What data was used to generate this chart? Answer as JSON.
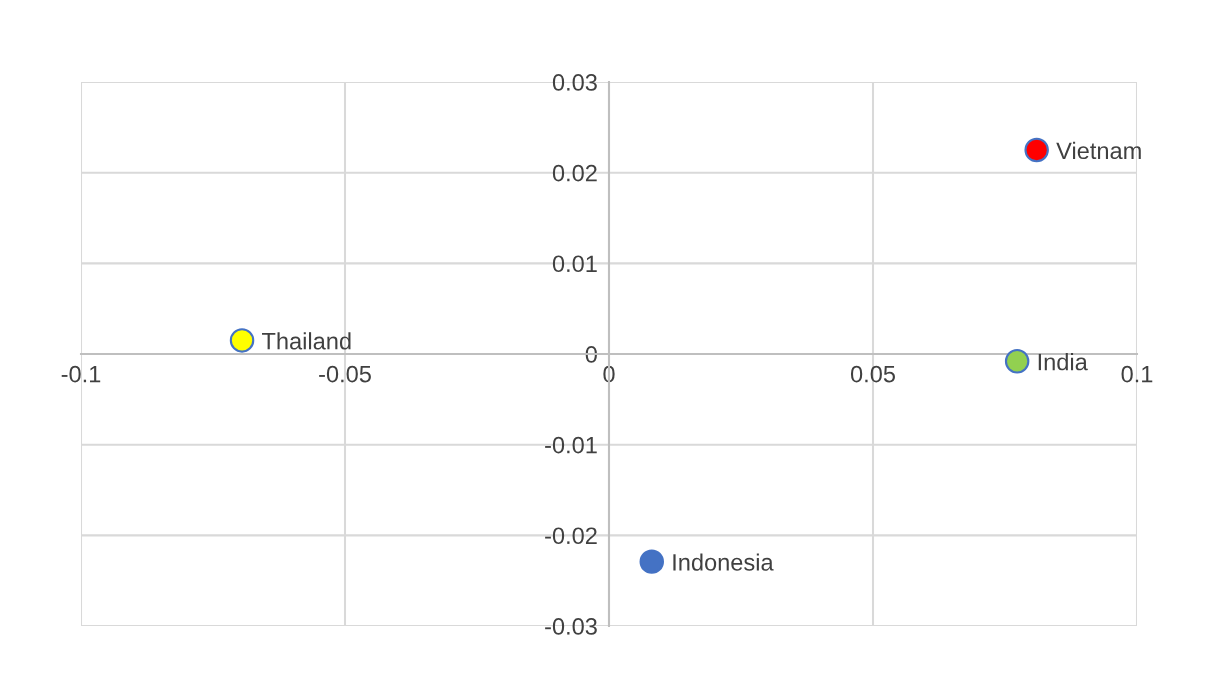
{
  "chart_data": {
    "type": "scatter",
    "xlim": [
      -0.1,
      0.1
    ],
    "ylim": [
      -0.03,
      0.03
    ],
    "xticks": [
      -0.1,
      -0.05,
      0,
      0.05,
      0.1
    ],
    "yticks": [
      -0.03,
      -0.02,
      -0.01,
      0,
      0.01,
      0.02,
      0.03
    ],
    "grid": true,
    "legend": false,
    "marker": "circle",
    "series": [
      {
        "name": "Thailand",
        "color": "#ffff00",
        "x": [
          -0.0695
        ],
        "values": [
          0.0015
        ]
      },
      {
        "name": "Vietnam",
        "color": "#ff0000",
        "x": [
          0.081
        ],
        "values": [
          0.0225
        ]
      },
      {
        "name": "India",
        "color": "#92d050",
        "x": [
          0.0773
        ],
        "values": [
          -0.0008
        ]
      },
      {
        "name": "Indonesia",
        "color": "#4472c4",
        "x": [
          0.0081
        ],
        "values": [
          -0.0229
        ]
      }
    ]
  }
}
